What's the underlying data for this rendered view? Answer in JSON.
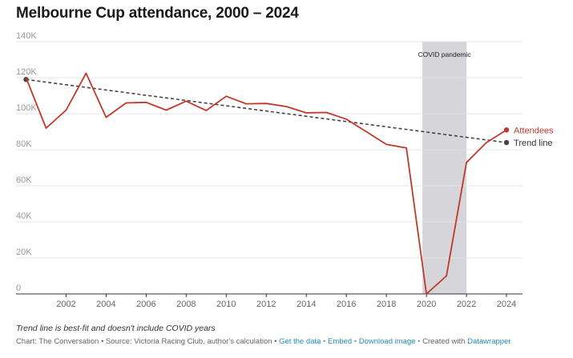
{
  "title": "Melbourne Cup attendance, 2000 – 2024",
  "chart_data": {
    "type": "line",
    "title": "Melbourne Cup attendance, 2000 – 2024",
    "x": [
      2000,
      2001,
      2002,
      2003,
      2004,
      2005,
      2006,
      2007,
      2008,
      2009,
      2010,
      2011,
      2012,
      2013,
      2014,
      2015,
      2016,
      2017,
      2018,
      2019,
      2020,
      2021,
      2022,
      2023,
      2024
    ],
    "series": [
      {
        "name": "Attendees",
        "color": "#c0392b",
        "values": [
          120000,
          92000,
          102000,
          122500,
          98000,
          106000,
          106300,
          102000,
          107000,
          101800,
          109700,
          105500,
          105700,
          104000,
          100500,
          100700,
          97000,
          90000,
          83000,
          81000,
          0,
          10000,
          73000,
          84000,
          91000
        ]
      },
      {
        "name": "Trend line",
        "color": "#444444",
        "style": "dashed",
        "x": [
          2000,
          2024
        ],
        "values": [
          119000,
          84000
        ]
      }
    ],
    "ylim": [
      0,
      140000
    ],
    "yticks": [
      0,
      20000,
      40000,
      60000,
      80000,
      100000,
      120000,
      140000
    ],
    "ytick_labels": [
      "0",
      "20K",
      "40K",
      "60K",
      "80K",
      "100K",
      "120K",
      "140K"
    ],
    "xticks": [
      2002,
      2004,
      2006,
      2008,
      2010,
      2012,
      2014,
      2016,
      2018,
      2020,
      2022,
      2024
    ],
    "xtick_labels": [
      "2002",
      "2004",
      "2006",
      "2008",
      "2010",
      "2012",
      "2014",
      "2016",
      "2018",
      "2020",
      "2022",
      "2024"
    ],
    "xlim": [
      1999.5,
      2024.8
    ],
    "grid": true,
    "annotation": {
      "text": "COVID pandemic",
      "x_start": 2019.8,
      "x_end": 2022
    },
    "xlabel": "",
    "ylabel": ""
  },
  "note": "Trend line is best-fit and doesn't include COVID years",
  "footer": {
    "prefix": "Chart: The Conversation • Source: Victoria Racing Club, author's calculation • ",
    "get_data": "Get the data",
    "embed": "Embed",
    "download": "Download image",
    "created": "Created with",
    "tool": "Datawrapper",
    "bullet": " • "
  }
}
